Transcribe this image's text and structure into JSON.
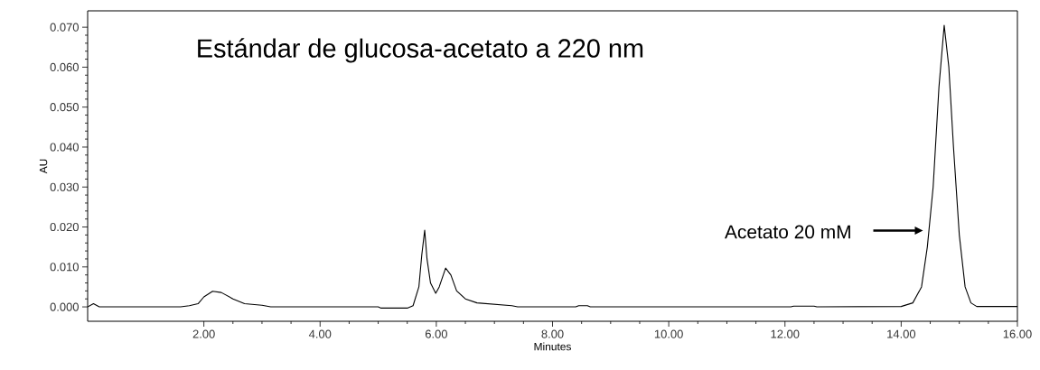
{
  "chart_data": {
    "type": "line",
    "title": "Estándar de glucosa-acetato a 220 nm",
    "xlabel": "Minutes",
    "ylabel": "AU",
    "xlim": [
      0,
      16
    ],
    "ylim": [
      -0.0036,
      0.0741
    ],
    "xticks": [
      {
        "value": 2,
        "label": "2.00"
      },
      {
        "value": 4,
        "label": "4.00"
      },
      {
        "value": 6,
        "label": "6.00"
      },
      {
        "value": 8,
        "label": "8.00"
      },
      {
        "value": 10,
        "label": "10.00"
      },
      {
        "value": 12,
        "label": "12.00"
      },
      {
        "value": 14,
        "label": "14.00"
      },
      {
        "value": 16,
        "label": "16.00"
      }
    ],
    "yticks": [
      {
        "value": 0,
        "label": "0.000"
      },
      {
        "value": 0.01,
        "label": "0.010"
      },
      {
        "value": 0.02,
        "label": "0.020"
      },
      {
        "value": 0.03,
        "label": "0.030"
      },
      {
        "value": 0.04,
        "label": "0.040"
      },
      {
        "value": 0.05,
        "label": "0.050"
      },
      {
        "value": 0.06,
        "label": "0.060"
      },
      {
        "value": 0.07,
        "label": "0.070"
      }
    ],
    "grid": false,
    "annotations": [
      "Acetato 20 mM"
    ],
    "series": [
      {
        "color": "#000000",
        "x": [
          0.0,
          0.1,
          0.2,
          1.6,
          1.75,
          1.9,
          2.0,
          2.15,
          2.3,
          2.5,
          2.7,
          3.0,
          3.15,
          5.0,
          5.05,
          5.5,
          5.6,
          5.7,
          5.75,
          5.8,
          5.84,
          5.9,
          5.99,
          6.05,
          6.16,
          6.25,
          6.35,
          6.5,
          6.7,
          7.3,
          7.4,
          8.4,
          8.45,
          8.6,
          8.65,
          12.1,
          12.15,
          12.5,
          12.55,
          14.0,
          14.2,
          14.35,
          14.45,
          14.55,
          14.65,
          14.74,
          14.82,
          14.9,
          15.0,
          15.1,
          15.2,
          15.3,
          16.0
        ],
        "values": [
          0.0,
          0.0008,
          0.0,
          0.0,
          0.0003,
          0.0008,
          0.0025,
          0.0039,
          0.0036,
          0.002,
          0.0008,
          0.0004,
          0.0,
          0.0,
          -0.0003,
          -0.0003,
          0.0003,
          0.005,
          0.013,
          0.0192,
          0.012,
          0.006,
          0.0034,
          0.005,
          0.0097,
          0.008,
          0.004,
          0.002,
          0.001,
          0.0003,
          0.0,
          0.0,
          0.0003,
          0.0003,
          0.0,
          0.0,
          0.0002,
          0.0002,
          0.0,
          0.0001,
          0.001,
          0.005,
          0.015,
          0.03,
          0.055,
          0.0705,
          0.06,
          0.04,
          0.018,
          0.005,
          0.001,
          0.0001,
          0.0001
        ]
      }
    ]
  }
}
